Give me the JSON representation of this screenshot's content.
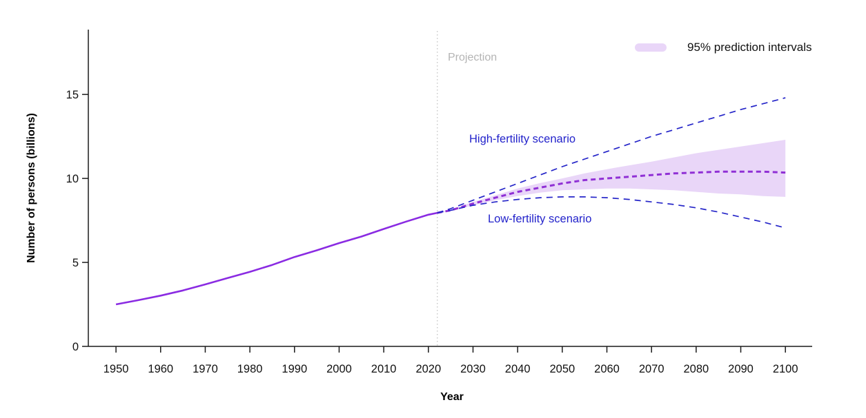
{
  "figure": {
    "y_axis_title": "Number of persons (billions)",
    "x_axis_title": "Year",
    "projection_label": "Projection",
    "labels": {
      "high": "High-fertility scenario",
      "low": "Low-fertility scenario"
    },
    "legend_label": "95% prediction intervals"
  },
  "colors": {
    "historical_line": "#8a2be2",
    "median_line": "#9030d5",
    "scenario_line": "#2424c8",
    "band_fill": "#e9d6f8",
    "divider": "#c2c2c2",
    "axis": "#1a1a1a",
    "tick_text": "#111111",
    "projection_text": "#b4b4b4",
    "scenario_text": "#2323cb"
  },
  "chart_data": {
    "type": "line",
    "title": "",
    "xlabel": "Year",
    "ylabel": "Number of persons (billions)",
    "x_ticks": [
      1950,
      1960,
      1970,
      1980,
      1990,
      2000,
      2010,
      2020,
      2030,
      2040,
      2050,
      2060,
      2070,
      2080,
      2090,
      2100
    ],
    "y_ticks": [
      0,
      5,
      10,
      15
    ],
    "xlim": [
      1943.8,
      2106
    ],
    "ylim": [
      0,
      18.86
    ],
    "grid": false,
    "legend_position": "top-right",
    "projection_start_year": 2022,
    "series": [
      {
        "name": "historical",
        "style": "solid",
        "color_key": "historical_line",
        "width": 2.6,
        "x": [
          1950,
          1955,
          1960,
          1965,
          1970,
          1975,
          1980,
          1985,
          1990,
          1995,
          2000,
          2005,
          2010,
          2015,
          2020,
          2022
        ],
        "y": [
          2.5,
          2.75,
          3.02,
          3.33,
          3.69,
          4.07,
          4.44,
          4.85,
          5.32,
          5.72,
          6.15,
          6.54,
          6.99,
          7.43,
          7.84,
          7.95
        ]
      },
      {
        "name": "median-projection",
        "style": "dashed",
        "dash": "7 5",
        "color_key": "median_line",
        "width": 3,
        "x": [
          2022,
          2025,
          2030,
          2035,
          2040,
          2045,
          2050,
          2055,
          2060,
          2065,
          2070,
          2075,
          2080,
          2085,
          2090,
          2095,
          2100
        ],
        "y": [
          7.95,
          8.1,
          8.5,
          8.85,
          9.2,
          9.45,
          9.7,
          9.9,
          10.0,
          10.1,
          10.2,
          10.3,
          10.35,
          10.4,
          10.4,
          10.4,
          10.35
        ]
      },
      {
        "name": "high-fertility-scenario",
        "style": "dashed",
        "dash": "9 7",
        "color_key": "scenario_line",
        "width": 1.7,
        "x": [
          2022,
          2025,
          2030,
          2035,
          2040,
          2045,
          2050,
          2055,
          2060,
          2065,
          2070,
          2075,
          2080,
          2085,
          2090,
          2095,
          2100
        ],
        "y": [
          7.95,
          8.2,
          8.7,
          9.2,
          9.7,
          10.2,
          10.7,
          11.15,
          11.6,
          12.05,
          12.5,
          12.9,
          13.3,
          13.7,
          14.1,
          14.45,
          14.8
        ]
      },
      {
        "name": "low-fertility-scenario",
        "style": "dashed",
        "dash": "9 7",
        "color_key": "scenario_line",
        "width": 1.7,
        "x": [
          2022,
          2025,
          2030,
          2035,
          2040,
          2045,
          2050,
          2055,
          2060,
          2065,
          2070,
          2075,
          2080,
          2085,
          2090,
          2095,
          2100
        ],
        "y": [
          7.95,
          8.1,
          8.4,
          8.6,
          8.75,
          8.85,
          8.9,
          8.9,
          8.85,
          8.75,
          8.6,
          8.45,
          8.25,
          8.0,
          7.7,
          7.4,
          7.05
        ]
      }
    ],
    "band": {
      "name": "95% prediction interval",
      "x": [
        2022,
        2025,
        2030,
        2035,
        2040,
        2045,
        2050,
        2055,
        2060,
        2065,
        2070,
        2075,
        2080,
        2085,
        2090,
        2095,
        2100
      ],
      "upper": [
        7.95,
        8.15,
        8.6,
        9.0,
        9.4,
        9.72,
        10.0,
        10.3,
        10.55,
        10.78,
        11.0,
        11.25,
        11.5,
        11.7,
        11.9,
        12.1,
        12.3
      ],
      "lower": [
        7.95,
        8.05,
        8.4,
        8.7,
        8.95,
        9.15,
        9.3,
        9.35,
        9.4,
        9.4,
        9.35,
        9.3,
        9.2,
        9.1,
        9.05,
        8.95,
        8.9
      ]
    }
  }
}
